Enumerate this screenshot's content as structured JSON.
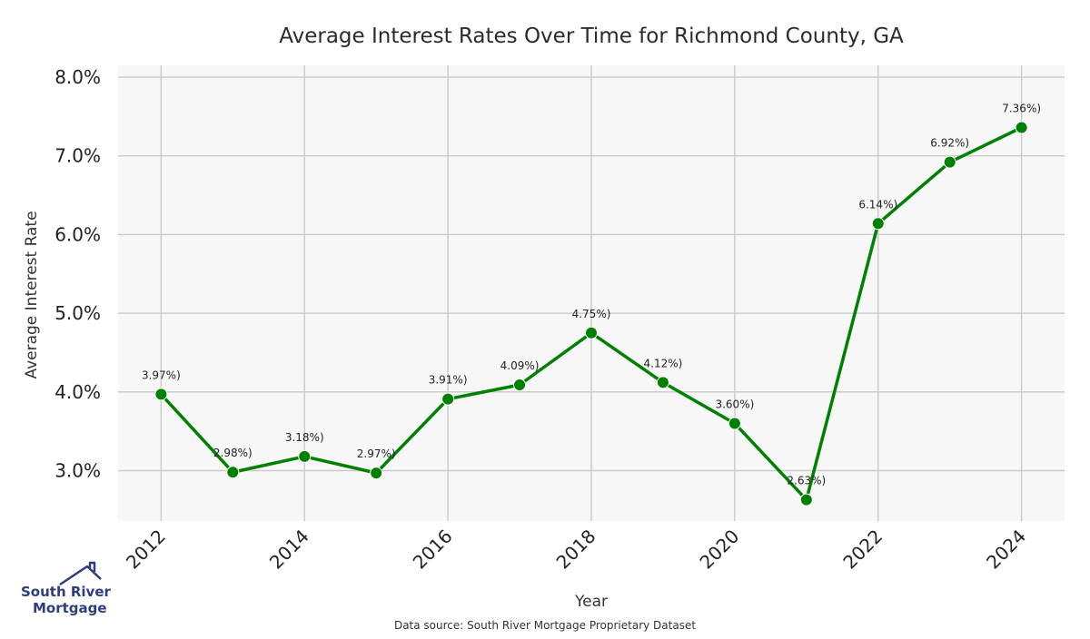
{
  "chart_data": {
    "type": "line",
    "title": "Average Interest Rates Over Time for Richmond County, GA",
    "xlabel": "Year",
    "ylabel": "Average Interest Rate",
    "x": [
      2012,
      2013,
      2014,
      2015,
      2016,
      2017,
      2018,
      2019,
      2020,
      2021,
      2022,
      2023,
      2024
    ],
    "series": [
      {
        "values": [
          3.97,
          2.98,
          3.18,
          2.97,
          3.91,
          4.09,
          4.75,
          4.12,
          3.6,
          2.63,
          6.14,
          6.92,
          7.36
        ],
        "color": "#008000"
      }
    ],
    "data_labels": [
      "3.97%)",
      "2.98%)",
      "3.18%)",
      "2.97%)",
      "3.91%)",
      "4.09%)",
      "4.75%)",
      "4.12%)",
      "3.60%)",
      "2.63%)",
      "6.14%)",
      "6.92%)",
      "7.36%)"
    ],
    "x_ticks": [
      2012,
      2014,
      2016,
      2018,
      2020,
      2022,
      2024
    ],
    "x_tick_labels": [
      "2012",
      "2014",
      "2016",
      "2018",
      "2020",
      "2022",
      "2024"
    ],
    "y_ticks": [
      3.0,
      4.0,
      5.0,
      6.0,
      7.0,
      8.0
    ],
    "y_tick_labels": [
      "3.0%",
      "4.0%",
      "5.0%",
      "6.0%",
      "7.0%",
      "8.0%"
    ],
    "xlim": [
      2011.4,
      2024.6
    ],
    "ylim": [
      2.36,
      8.15
    ],
    "grid": true,
    "legend": false,
    "plot_background": "#f7f7f7",
    "grid_color": "#cccccc"
  },
  "source_note": "Data source: South River Mortgage Proprietary Dataset",
  "logo": {
    "line1": "South River",
    "line2": "Mortgage",
    "icon": "house-roof-icon",
    "color": "#2e3d7c"
  }
}
